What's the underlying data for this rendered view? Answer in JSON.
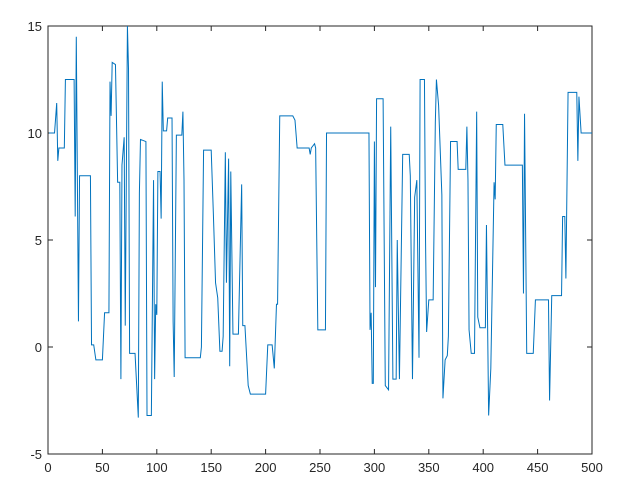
{
  "chart_data": {
    "type": "line",
    "x": [
      1,
      6,
      8,
      9,
      10,
      15,
      16,
      24,
      25,
      26,
      28,
      29,
      39,
      40,
      42,
      44,
      50,
      52,
      56,
      57,
      58,
      59,
      62,
      64,
      66,
      67,
      68,
      70,
      71,
      73,
      74,
      75,
      80,
      83,
      84,
      85,
      90,
      91,
      95,
      97,
      98,
      99,
      100,
      101,
      103,
      104,
      105,
      106,
      109,
      110,
      114,
      115,
      116,
      118,
      123,
      124,
      125,
      126,
      140,
      141,
      143,
      150,
      152,
      154,
      156,
      158,
      160,
      161,
      163,
      164,
      166,
      167,
      168,
      170,
      175,
      178,
      179,
      181,
      184,
      186,
      200,
      202,
      206,
      208,
      210,
      211,
      213,
      225,
      227,
      229,
      240,
      241,
      242,
      245,
      246,
      248,
      255,
      256,
      295,
      296,
      297,
      298,
      299,
      300,
      301,
      302,
      308,
      310,
      313,
      315,
      317,
      320,
      321,
      323,
      326,
      332,
      333,
      335,
      337,
      339,
      341,
      342,
      346,
      347,
      348,
      350,
      354,
      356,
      357,
      359,
      362,
      363,
      365,
      367,
      368,
      370,
      376,
      377,
      384,
      385,
      386,
      387,
      389,
      392,
      394,
      395,
      397,
      402,
      403,
      405,
      407,
      410,
      411,
      412,
      418,
      420,
      436,
      437,
      438,
      440,
      446,
      448,
      460,
      461,
      463,
      472,
      473,
      475,
      476,
      478,
      486,
      487,
      488,
      490,
      500
    ],
    "series": [
      {
        "color": "#0072bd",
        "values": [
          10,
          10,
          11.4,
          8.7,
          9.3,
          9.3,
          12.5,
          12.5,
          6.1,
          14.5,
          1.2,
          8,
          8,
          0.1,
          0.1,
          -0.6,
          -0.6,
          1.6,
          1.6,
          12.4,
          10.8,
          13.3,
          13.2,
          7.7,
          7.7,
          -1.5,
          8.5,
          9.8,
          1,
          15,
          13,
          -0.3,
          -0.3,
          -3.3,
          7.2,
          9.7,
          9.6,
          -3.2,
          -3.2,
          7.8,
          -1.5,
          2,
          1.5,
          8.2,
          8.2,
          6,
          12.4,
          10.1,
          10.1,
          10.7,
          10.7,
          1.2,
          -1.4,
          9.9,
          9.9,
          11,
          7.8,
          -0.5,
          -0.5,
          0,
          9.2,
          9.2,
          6.2,
          3,
          2.3,
          -0.2,
          -0.2,
          0.5,
          9.1,
          3,
          8.8,
          -0.9,
          8.2,
          0.6,
          0.6,
          7.6,
          1,
          1,
          -1.8,
          -2.2,
          -2.2,
          0.1,
          0.1,
          -1,
          2,
          2,
          10.8,
          10.8,
          10.6,
          9.3,
          9.3,
          9,
          9.3,
          9.5,
          9.3,
          0.8,
          0.8,
          10,
          10,
          0.8,
          1.6,
          -1.7,
          -1.7,
          9.6,
          2.8,
          11.6,
          11.6,
          -1.8,
          -2,
          10.3,
          -1.5,
          -1.5,
          5,
          -1.5,
          9,
          9,
          8,
          -1.5,
          7,
          7.8,
          -0.5,
          12.5,
          12.5,
          5,
          0.7,
          2.2,
          2.2,
          10.5,
          12.5,
          11.3,
          7.1,
          -2.4,
          -0.6,
          -0.4,
          0.5,
          9.6,
          9.6,
          8.3,
          8.3,
          10.3,
          7.8,
          0.8,
          -0.3,
          -0.3,
          11,
          1.4,
          0.9,
          0.9,
          5.7,
          -3.2,
          -1,
          7.7,
          6.9,
          10.4,
          10.4,
          8.5,
          8.5,
          2.5,
          10.9,
          -0.3,
          -0.3,
          2.2,
          2.2,
          -2.5,
          2.4,
          2.4,
          6.1,
          6.1,
          3.2,
          11.9,
          11.9,
          8.7,
          11.7,
          10,
          10
        ]
      }
    ],
    "xlim": [
      0,
      500
    ],
    "xticks": [
      0,
      50,
      100,
      150,
      200,
      250,
      300,
      350,
      400,
      450,
      500
    ],
    "ylim": [
      -5,
      15
    ],
    "yticks": [
      -5,
      0,
      5,
      10,
      15
    ],
    "grid": false
  }
}
